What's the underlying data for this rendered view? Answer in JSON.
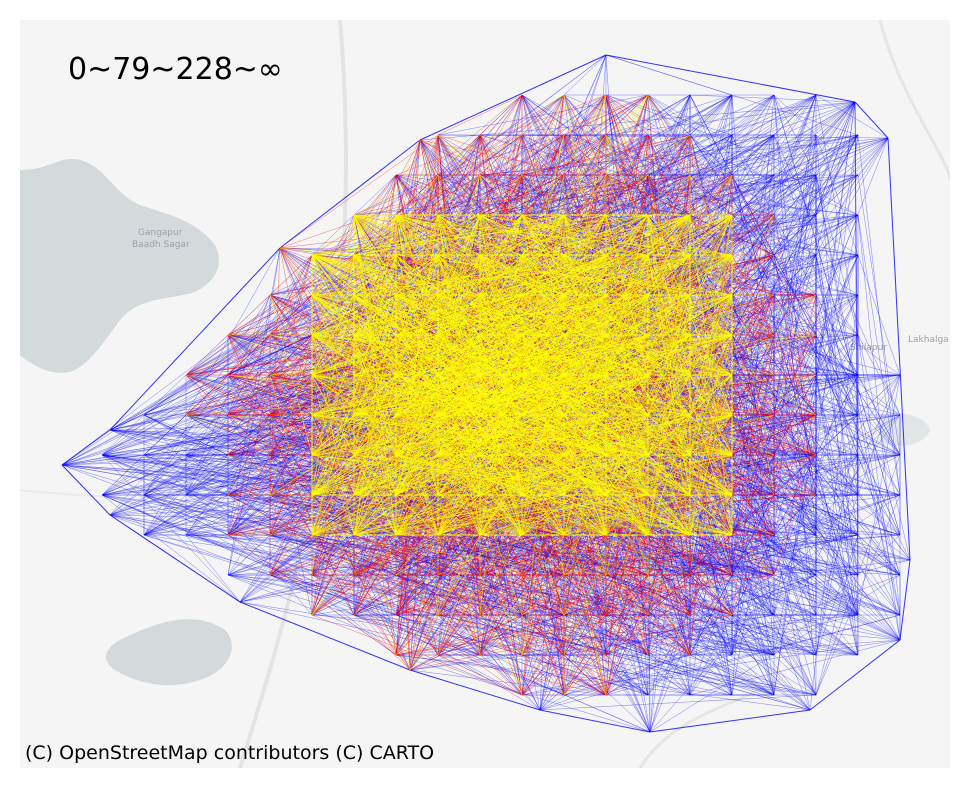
{
  "map": {
    "title": "0~79~228~∞",
    "attribution": "(C) OpenStreetMap contributors (C) CARTO",
    "place_labels": {
      "reservoir_line1": "Gangapur",
      "reservoir_line2": "Baadh Sagar",
      "town_1": "Shilapur",
      "town_2": "Lakhalga"
    },
    "colors": {
      "background": "#f4f5f4",
      "water": "#d4dadc",
      "low_band": "#0000ff",
      "mid_band": "#ff0000",
      "high_band": "#ffff00"
    }
  }
}
